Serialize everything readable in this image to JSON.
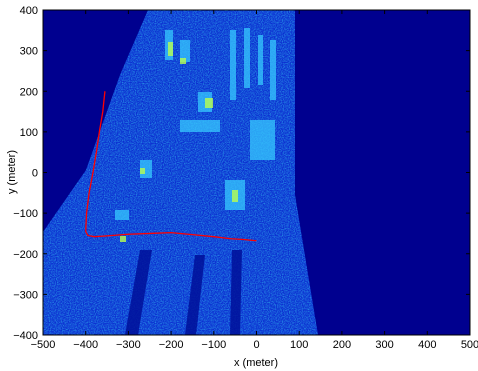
{
  "chart_data": {
    "type": "heatmap",
    "title": "",
    "xlabel": "x (meter)",
    "ylabel": "y (meter)",
    "xlim": [
      -500,
      500
    ],
    "ylim": [
      -400,
      400
    ],
    "xticks": [
      -500,
      -400,
      -300,
      -200,
      -100,
      0,
      100,
      200,
      300,
      400,
      500
    ],
    "yticks": [
      -400,
      -300,
      -200,
      -100,
      0,
      100,
      200,
      300,
      400
    ],
    "grid": false,
    "colormap": "jet",
    "background_color": "#00008f",
    "series": [
      {
        "type": "line",
        "color": "#ff0000",
        "x": [
          -355,
          -360,
          -368,
          -375,
          -383,
          -392,
          -398,
          -400,
          -395,
          -380,
          -350,
          -300,
          -250,
          -200,
          -150,
          -100,
          -60,
          -30,
          0
        ],
        "y": [
          200,
          150,
          100,
          50,
          0,
          -50,
          -100,
          -145,
          -155,
          -158,
          -156,
          -152,
          -150,
          -148,
          -153,
          -158,
          -163,
          -165,
          -168
        ]
      }
    ]
  },
  "colors": {
    "background": "#00008f",
    "imaged_area": "#0a2bd0",
    "track": "#ff0000"
  }
}
